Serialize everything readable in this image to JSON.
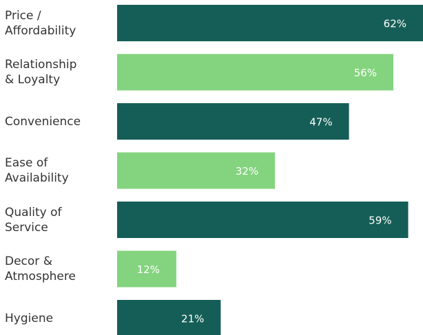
{
  "chart_data": {
    "type": "bar",
    "orientation": "horizontal",
    "categories": [
      "Price /\nAffordability",
      "Relationship\n& Loyalty",
      "Convenience",
      "Ease of\nAvailability",
      "Quality of\nService",
      "Decor &\nAtmosphere",
      "Hygiene"
    ],
    "values": [
      62,
      56,
      47,
      32,
      59,
      12,
      21
    ],
    "value_labels": [
      "62%",
      "56%",
      "47%",
      "32%",
      "59%",
      "12%",
      "21%"
    ],
    "unit": "%",
    "xlim": [
      0,
      62
    ],
    "grid": false,
    "legend": "none",
    "colors": {
      "dark_bar": "#155e57",
      "light_bar": "#84d47f",
      "label_text": "#333333",
      "value_text": "#ffffff"
    },
    "bar_color_pattern": [
      "dark_bar",
      "light_bar",
      "dark_bar",
      "light_bar",
      "dark_bar",
      "light_bar",
      "dark_bar"
    ]
  }
}
